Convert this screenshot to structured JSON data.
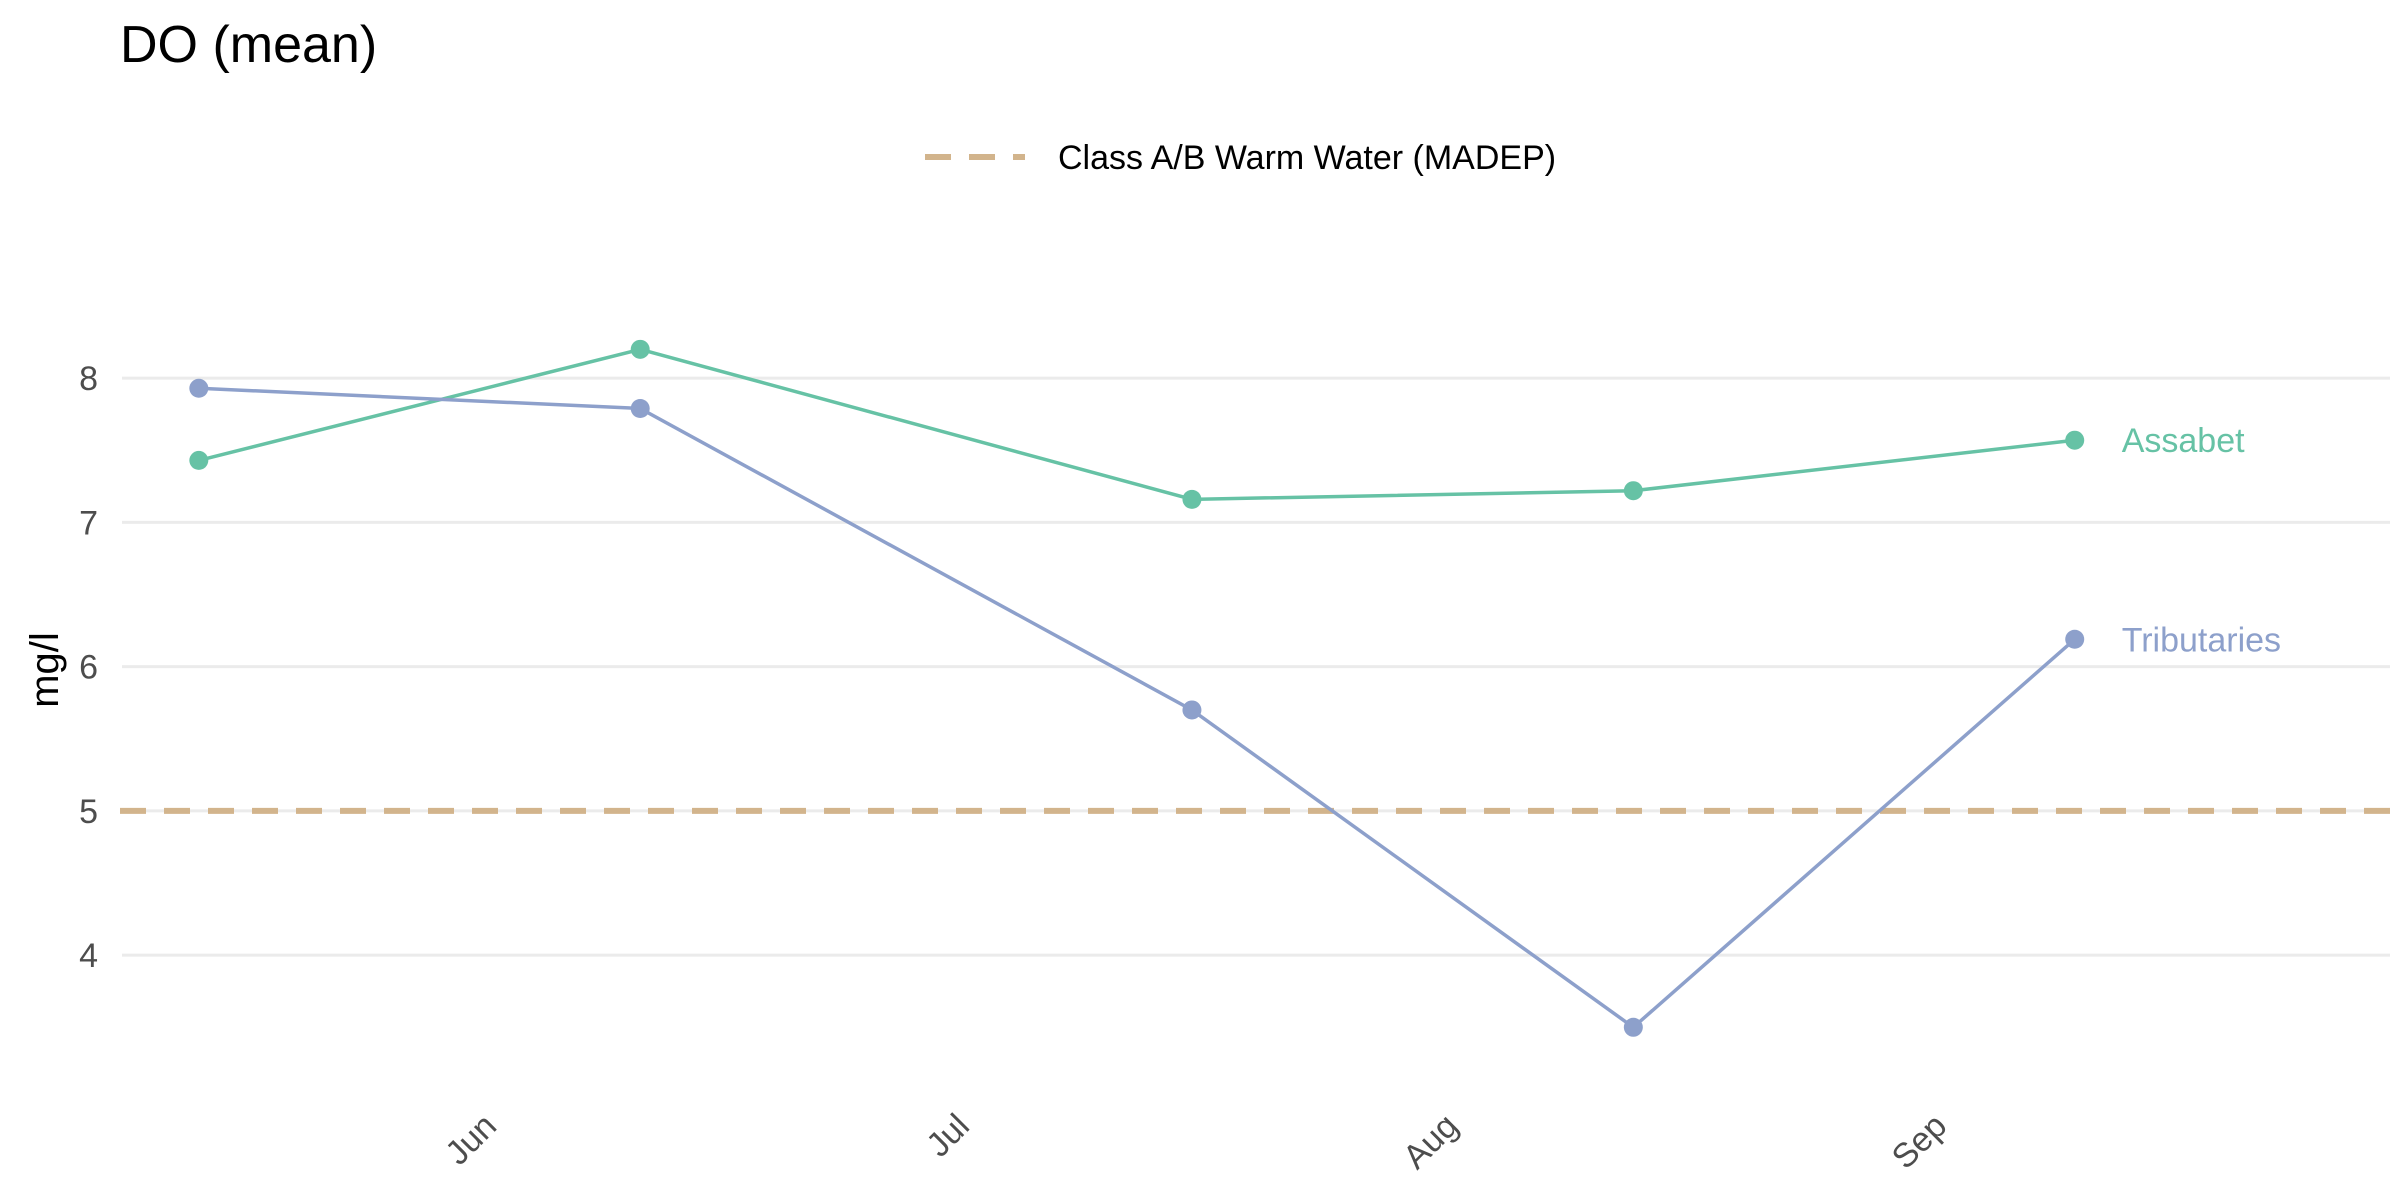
{
  "chart_data": {
    "type": "line",
    "title": "DO (mean)",
    "xlabel": "",
    "ylabel": "mg/l",
    "x_ticks": [
      "Jun",
      "Jul",
      "Aug",
      "Sep"
    ],
    "x_tick_dates": [
      "2023-06-01",
      "2023-07-01",
      "2023-08-01",
      "2023-09-01"
    ],
    "xlim": [
      "2023-05-08",
      "2023-09-29"
    ],
    "ylim": [
      3.1,
      8.75
    ],
    "y_ticks": [
      4,
      5,
      6,
      7,
      8
    ],
    "grid": true,
    "legend": {
      "position": "top",
      "entries": [
        {
          "label": "Class A/B Warm Water (MADEP)",
          "style": "dashed",
          "color": "#d2b48c"
        }
      ]
    },
    "reference_lines": [
      {
        "name": "Class A/B Warm Water (MADEP)",
        "y": 5,
        "color": "#d2b48c",
        "style": "dashed"
      }
    ],
    "series": [
      {
        "name": "Assabet",
        "color": "#66c2a5",
        "x": [
          "2023-05-13",
          "2023-06-10",
          "2023-07-15",
          "2023-08-12",
          "2023-09-09"
        ],
        "y": [
          7.43,
          8.2,
          7.16,
          7.22,
          7.57
        ]
      },
      {
        "name": "Tributaries",
        "color": "#8da0cb",
        "x": [
          "2023-05-13",
          "2023-06-10",
          "2023-07-15",
          "2023-08-12",
          "2023-09-09"
        ],
        "y": [
          7.93,
          7.79,
          5.7,
          3.5,
          6.19
        ]
      }
    ]
  }
}
